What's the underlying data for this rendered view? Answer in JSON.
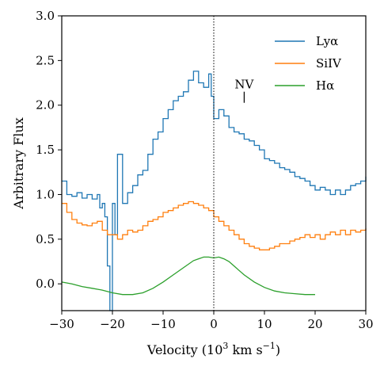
{
  "chart_data": {
    "type": "line",
    "title": "",
    "xlabel": "Velocity (10",
    "xlabel_sup_3": "3",
    "xlabel_unit": " km s",
    "xlabel_sup_neg1": "−1",
    "xlabel_close": ")",
    "ylabel": "Arbitrary Flux",
    "xlim": [
      -30,
      30
    ],
    "ylim": [
      -0.3,
      3.0
    ],
    "xticks": [
      -30,
      -20,
      -10,
      0,
      10,
      20,
      30
    ],
    "xtick_labels": [
      "−30",
      "−20",
      "−10",
      "0",
      "10",
      "20",
      "30"
    ],
    "yticks": [
      0.0,
      0.5,
      1.0,
      1.5,
      2.0,
      2.5,
      3.0
    ],
    "ytick_labels": [
      "0.0",
      "0.5",
      "1.0",
      "1.5",
      "2.0",
      "2.5",
      "3.0"
    ],
    "vline_x": 0,
    "legend_position": "top-right",
    "annotation": {
      "label": "NV",
      "x": 6,
      "y": 2.08
    },
    "series": [
      {
        "name": "Lyα",
        "color": "#1f77b4",
        "step": true,
        "x": [
          -30,
          -29,
          -28,
          -27,
          -26,
          -25,
          -24,
          -23,
          -22.5,
          -22,
          -21.5,
          -21,
          -20.5,
          -20,
          -19.5,
          -19,
          -18,
          -17,
          -16,
          -15,
          -14,
          -13,
          -12,
          -11,
          -10,
          -9,
          -8,
          -7,
          -6,
          -5,
          -4,
          -3,
          -2,
          -1,
          -0.5,
          0,
          1,
          2,
          3,
          4,
          5,
          6,
          7,
          8,
          9,
          10,
          11,
          12,
          13,
          14,
          15,
          16,
          17,
          18,
          19,
          20,
          21,
          22,
          23,
          24,
          25,
          26,
          27,
          28,
          29,
          30
        ],
        "y": [
          1.15,
          1.0,
          0.98,
          1.02,
          0.96,
          1.0,
          0.95,
          1.0,
          0.85,
          0.9,
          0.75,
          0.2,
          -0.3,
          0.9,
          0.55,
          1.45,
          0.9,
          1.02,
          1.1,
          1.22,
          1.27,
          1.45,
          1.62,
          1.7,
          1.85,
          1.95,
          2.05,
          2.1,
          2.15,
          2.28,
          2.38,
          2.25,
          2.2,
          2.35,
          2.1,
          1.85,
          1.95,
          1.88,
          1.75,
          1.7,
          1.68,
          1.62,
          1.6,
          1.55,
          1.5,
          1.4,
          1.38,
          1.35,
          1.3,
          1.28,
          1.25,
          1.2,
          1.18,
          1.15,
          1.1,
          1.05,
          1.08,
          1.05,
          1.0,
          1.05,
          1.0,
          1.05,
          1.1,
          1.12,
          1.15,
          1.2
        ]
      },
      {
        "name": "SiIV",
        "color": "#ff7f0e",
        "step": true,
        "x": [
          -30,
          -29,
          -28,
          -27,
          -26,
          -25,
          -24,
          -23,
          -22,
          -21,
          -20,
          -19,
          -18,
          -17,
          -16,
          -15,
          -14,
          -13,
          -12,
          -11,
          -10,
          -9,
          -8,
          -7,
          -6,
          -5,
          -4,
          -3,
          -2,
          -1,
          0,
          1,
          2,
          3,
          4,
          5,
          6,
          7,
          8,
          9,
          10,
          11,
          12,
          13,
          14,
          15,
          16,
          17,
          18,
          19,
          20,
          21,
          22,
          23,
          24,
          25,
          26,
          27,
          28,
          29,
          30
        ],
        "y": [
          0.9,
          0.8,
          0.72,
          0.68,
          0.66,
          0.65,
          0.68,
          0.7,
          0.6,
          0.55,
          0.55,
          0.5,
          0.55,
          0.6,
          0.58,
          0.6,
          0.65,
          0.7,
          0.72,
          0.75,
          0.8,
          0.82,
          0.85,
          0.88,
          0.9,
          0.92,
          0.9,
          0.88,
          0.85,
          0.82,
          0.75,
          0.7,
          0.65,
          0.6,
          0.55,
          0.5,
          0.45,
          0.42,
          0.4,
          0.38,
          0.38,
          0.4,
          0.42,
          0.45,
          0.45,
          0.48,
          0.5,
          0.52,
          0.55,
          0.52,
          0.55,
          0.5,
          0.55,
          0.58,
          0.55,
          0.6,
          0.55,
          0.6,
          0.58,
          0.6,
          0.62
        ]
      },
      {
        "name": "Hα",
        "color": "#2ca02c",
        "step": false,
        "x": [
          -30,
          -28,
          -26,
          -24,
          -22,
          -20,
          -18,
          -16,
          -14,
          -12,
          -10,
          -8,
          -6,
          -4,
          -3,
          -2,
          -1,
          0,
          1,
          2,
          3,
          4,
          5,
          6,
          8,
          10,
          12,
          14,
          16,
          18,
          20
        ],
        "y": [
          0.02,
          0.0,
          -0.03,
          -0.05,
          -0.07,
          -0.1,
          -0.12,
          -0.12,
          -0.1,
          -0.05,
          0.02,
          0.1,
          0.18,
          0.26,
          0.28,
          0.3,
          0.3,
          0.29,
          0.3,
          0.28,
          0.25,
          0.2,
          0.15,
          0.1,
          0.02,
          -0.04,
          -0.08,
          -0.1,
          -0.11,
          -0.12,
          -0.12
        ]
      }
    ]
  }
}
